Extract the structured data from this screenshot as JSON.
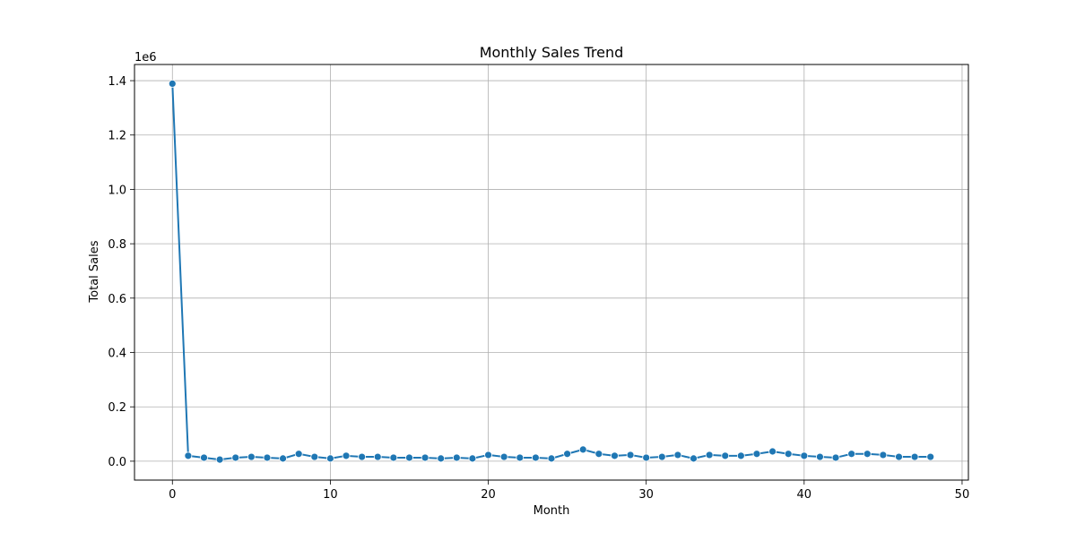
{
  "chart_data": {
    "type": "line",
    "title": "Monthly Sales Trend",
    "xlabel": "Month",
    "ylabel": "Total Sales",
    "y_offset_label": "1e6",
    "xlim": [
      -2.4,
      50.4
    ],
    "ylim": [
      -0.0695,
      1.4595
    ],
    "x_ticks": [
      0,
      10,
      20,
      30,
      40,
      50
    ],
    "x_tick_labels": [
      "0",
      "10",
      "20",
      "30",
      "40",
      "50"
    ],
    "y_ticks": [
      0.0,
      0.2,
      0.4,
      0.6,
      0.8,
      1.0,
      1.2,
      1.4
    ],
    "y_tick_labels": [
      "0.0",
      "0.2",
      "0.4",
      "0.6",
      "0.8",
      "1.0",
      "1.2",
      "1.4"
    ],
    "grid": true,
    "marker": "circle",
    "line_color": "#1f77b4",
    "series": [
      {
        "x": [
          0,
          1,
          2,
          3,
          4,
          5,
          6,
          7,
          8,
          9,
          10,
          11,
          12,
          13,
          14,
          15,
          16,
          17,
          18,
          19,
          20,
          21,
          22,
          23,
          24,
          25,
          26,
          27,
          28,
          29,
          30,
          31,
          32,
          33,
          34,
          35,
          36,
          37,
          38,
          39,
          40,
          41,
          42,
          43,
          44,
          45,
          46,
          47,
          48
        ],
        "values": [
          1.389,
          0.02,
          0.013,
          0.006,
          0.013,
          0.016,
          0.013,
          0.01,
          0.027,
          0.016,
          0.01,
          0.02,
          0.016,
          0.016,
          0.013,
          0.013,
          0.013,
          0.01,
          0.013,
          0.01,
          0.023,
          0.016,
          0.013,
          0.013,
          0.01,
          0.027,
          0.043,
          0.027,
          0.02,
          0.023,
          0.013,
          0.016,
          0.023,
          0.01,
          0.023,
          0.02,
          0.02,
          0.027,
          0.036,
          0.027,
          0.02,
          0.016,
          0.013,
          0.027,
          0.027,
          0.023,
          0.016,
          0.016,
          0.016
        ]
      }
    ]
  }
}
